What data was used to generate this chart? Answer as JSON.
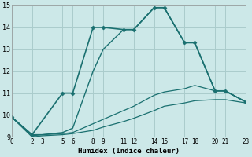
{
  "xlabel": "Humidex (Indice chaleur)",
  "ylabel": "",
  "bg_color": "#cce8e8",
  "grid_color": "#aacccc",
  "line_color": "#1a7070",
  "xlim": [
    0,
    23
  ],
  "ylim": [
    9,
    15
  ],
  "xtick_positions": [
    0,
    2,
    3,
    5,
    6,
    8,
    9,
    11,
    12,
    14,
    15,
    17,
    18,
    20,
    21,
    23
  ],
  "xtick_labels": [
    "0",
    "2",
    "3",
    "5",
    "6",
    "8",
    "9",
    "11",
    "12",
    "14",
    "15",
    "17",
    "18",
    "20",
    "21",
    "23"
  ],
  "ytick_positions": [
    9,
    10,
    11,
    12,
    13,
    14,
    15
  ],
  "ytick_labels": [
    "9",
    "10",
    "11",
    "12",
    "13",
    "14",
    "15"
  ],
  "series": [
    {
      "x": [
        0,
        2,
        5,
        6,
        8,
        9,
        11,
        12,
        14,
        15,
        17,
        18,
        20,
        21,
        23
      ],
      "y": [
        9.9,
        9.1,
        11.0,
        11.0,
        14.0,
        14.0,
        13.9,
        13.9,
        14.9,
        14.9,
        13.3,
        13.3,
        11.1,
        11.1,
        10.6
      ],
      "marker": "D",
      "markersize": 2.5,
      "linewidth": 1.2
    },
    {
      "x": [
        0,
        2,
        3,
        5,
        6,
        8,
        9,
        11,
        12,
        14,
        15,
        17,
        18,
        20,
        21,
        23
      ],
      "y": [
        9.9,
        9.1,
        9.1,
        9.2,
        9.4,
        12.0,
        13.0,
        13.9,
        13.9,
        14.9,
        14.9,
        13.3,
        13.3,
        11.1,
        11.1,
        10.6
      ],
      "marker": null,
      "markersize": 0,
      "linewidth": 1.0
    },
    {
      "x": [
        0,
        2,
        3,
        5,
        6,
        8,
        9,
        11,
        12,
        14,
        15,
        17,
        18,
        20,
        21,
        23
      ],
      "y": [
        9.9,
        9.05,
        9.1,
        9.15,
        9.2,
        9.6,
        9.8,
        10.2,
        10.4,
        10.9,
        11.05,
        11.2,
        11.35,
        11.1,
        11.1,
        10.6
      ],
      "marker": null,
      "markersize": 0,
      "linewidth": 0.9
    },
    {
      "x": [
        0,
        2,
        3,
        5,
        6,
        8,
        9,
        11,
        12,
        14,
        15,
        17,
        18,
        20,
        21,
        23
      ],
      "y": [
        9.9,
        9.0,
        9.05,
        9.1,
        9.15,
        9.3,
        9.45,
        9.7,
        9.85,
        10.2,
        10.4,
        10.55,
        10.65,
        10.7,
        10.7,
        10.55
      ],
      "marker": null,
      "markersize": 0,
      "linewidth": 0.9
    }
  ]
}
